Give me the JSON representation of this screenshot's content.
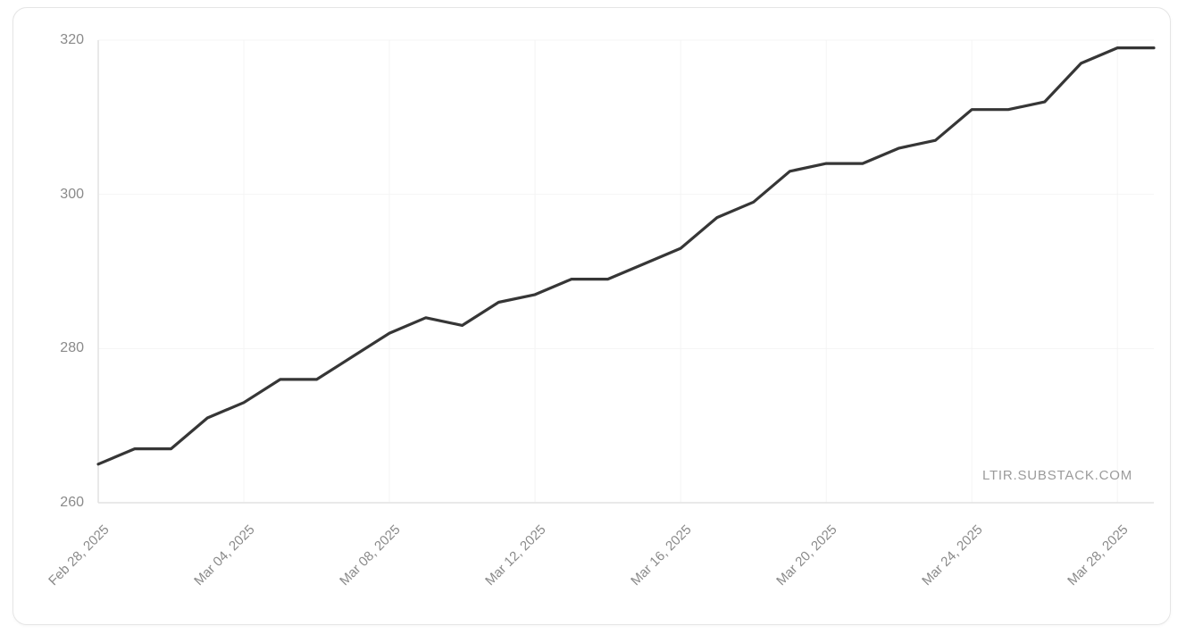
{
  "watermark": "LTIR.SUBSTACK.COM",
  "card": {
    "background": "#ffffff",
    "border_color": "#e5e5e5"
  },
  "chart_data": {
    "type": "line",
    "title": "",
    "xlabel": "",
    "ylabel": "",
    "x": [
      "Feb 28, 2025",
      "Mar 01, 2025",
      "Mar 02, 2025",
      "Mar 03, 2025",
      "Mar 04, 2025",
      "Mar 05, 2025",
      "Mar 06, 2025",
      "Mar 07, 2025",
      "Mar 08, 2025",
      "Mar 09, 2025",
      "Mar 10, 2025",
      "Mar 11, 2025",
      "Mar 12, 2025",
      "Mar 13, 2025",
      "Mar 14, 2025",
      "Mar 15, 2025",
      "Mar 16, 2025",
      "Mar 17, 2025",
      "Mar 18, 2025",
      "Mar 19, 2025",
      "Mar 20, 2025",
      "Mar 21, 2025",
      "Mar 22, 2025",
      "Mar 23, 2025",
      "Mar 24, 2025",
      "Mar 25, 2025",
      "Mar 26, 2025",
      "Mar 27, 2025",
      "Mar 28, 2025",
      "Mar 29, 2025"
    ],
    "values": [
      265,
      267,
      267,
      271,
      273,
      276,
      276,
      279,
      282,
      284,
      283,
      286,
      287,
      289,
      289,
      291,
      293,
      297,
      299,
      303,
      304,
      304,
      306,
      307,
      311,
      311,
      312,
      317,
      319,
      319
    ],
    "x_tick_indices": [
      0,
      4,
      8,
      12,
      16,
      20,
      24,
      28
    ],
    "x_tick_labels": [
      "Feb 28, 2025",
      "Mar 04, 2025",
      "Mar 08, 2025",
      "Mar 12, 2025",
      "Mar 16, 2025",
      "Mar 20, 2025",
      "Mar 24, 2025",
      "Mar 28, 2025"
    ],
    "y_ticks": [
      260,
      280,
      300,
      320
    ],
    "ylim": [
      260,
      320
    ],
    "grid": true,
    "legend": "none",
    "line_color": "#363636",
    "axis_color": "#e2e2e2",
    "grid_color": "#f4f4f4",
    "tick_label_color": "#8a8a8a"
  }
}
